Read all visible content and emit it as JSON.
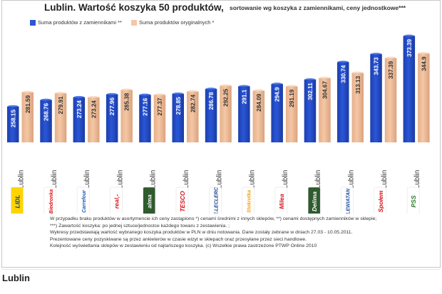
{
  "page": {
    "title": "Lublin. Wartość koszyka 50 produktów,",
    "subtitle": "sortowanie wg koszyka z zamiennikami, ceny jednostkowe***",
    "city_heading": "Lublin",
    "footnotes": [
      "W  przypadku braku produktów w asortymencie ich ceny zastąpiono *) cenami średnimi z innych sklepów, **) cenami dostępnych zamienników w sklepie;",
      "***) Zawartość koszyka: po jednej sztuce/jednostce każdego towaru z zestawienia. ;",
      "Wykresy przedstawiają wartość wybranego koszyka produktów w PLN w dniu notowania. Dane zostały zebrane w dniach 27.03 - 10.05.2011.",
      "Prezentowane ceny pozyskiwane są przez ankieterów w czasie wizyt w sklepach oraz przesyłane przez sieci handlowe.",
      "Kolejność wyświetlania sklepów w zestawieniu od najtańszego koszyka. (c) Wszelkie prawa zastrzeżone PTWP Online 2010"
    ],
    "colors": {
      "series1": "#2a56d6",
      "series2": "#f4c7a6",
      "logo_lidl": "#ffd500"
    }
  },
  "chart_data": {
    "type": "bar",
    "title": "Lublin. Wartość koszyka 50 produktów,",
    "subtitle": "sortowanie wg koszyka z zamiennikami, ceny jednostkowe***",
    "series": [
      {
        "name": "Suma produktów z zamiennikami **",
        "color": "#2a56d6",
        "values": [
          258.15,
          268.76,
          273.24,
          277.96,
          277.16,
          278.85,
          286.78,
          291.1,
          294.9,
          302.11,
          330.74,
          343.73,
          373.39
        ]
      },
      {
        "name": "Suma produktów oryginalnych *",
        "color": "#f4c7a6",
        "values": [
          281.59,
          279.91,
          273.24,
          285.38,
          277.37,
          282.74,
          292.25,
          284.09,
          291.19,
          304.67,
          313.13,
          337.39,
          344.9
        ]
      }
    ],
    "value_labels": {
      "series1": [
        "258.15",
        "268.76",
        "273.24",
        "277.96",
        "277.16",
        "278.85",
        "286.78",
        "291.1",
        "294.9",
        "302.11",
        "330.74",
        "343.73",
        "373.39"
      ],
      "series2": [
        "281.59",
        "279.91",
        "273.24",
        "285.38",
        "277.37",
        "282.74",
        "292.25",
        "284.09",
        "291.19",
        "304.67",
        "313.13",
        "337.39",
        "344.9"
      ]
    },
    "categories": [
      {
        "label": "Lublin",
        "logo": "LIDL",
        "logo_name": "lidl-logo"
      },
      {
        "label": "Lublin",
        "logo": "Biedronka",
        "logo_name": "biedronka-logo"
      },
      {
        "label": "Lublin",
        "logo": "Carrefour",
        "logo_name": "carrefour-logo"
      },
      {
        "label": "Lublin",
        "logo": "real,-",
        "logo_name": "real-logo"
      },
      {
        "label": "Lublin",
        "logo": "alma",
        "logo_name": "alma-logo"
      },
      {
        "label": "Lublin",
        "logo": "TESCO",
        "logo_name": "tesco-logo"
      },
      {
        "label": "Lublin",
        "logo": "E.LECLERC",
        "logo_name": "leclerc-logo"
      },
      {
        "label": "Lublin",
        "logo": "Stokrotka",
        "logo_name": "stokrotka-logo"
      },
      {
        "label": "Lublin",
        "logo": "Milea",
        "logo_name": "milea-logo"
      },
      {
        "label": "Lublin",
        "logo": "Delima",
        "logo_name": "delima-logo"
      },
      {
        "label": "Lublin",
        "logo": "LEWIATAN",
        "logo_name": "lewiatan-logo"
      },
      {
        "label": "Lublin",
        "logo": "Społem",
        "logo_name": "spolem-logo"
      },
      {
        "label": "Lublin",
        "logo": "PSS",
        "logo_name": "pss-logo"
      }
    ],
    "ylim": [
      200,
      390
    ],
    "grid": false,
    "legend": "top-left"
  }
}
